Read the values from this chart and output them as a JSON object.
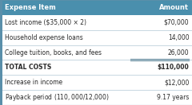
{
  "header": [
    "Expense Item",
    "Amount"
  ],
  "rows": [
    [
      "Lost income ($35,000 × 2)",
      "$70,000"
    ],
    [
      "Household expense loans",
      "14,000"
    ],
    [
      "College tuition, books, and fees",
      "26,000"
    ],
    [
      "TOTAL COSTS",
      "$110,000"
    ],
    [
      "Increase in income",
      "$12,000"
    ],
    [
      "Payback period ($110,000/$12,000)",
      "9.17 years"
    ]
  ],
  "header_bg": "#4a8fad",
  "header_fg": "#ffffff",
  "row_bg": "#f2f2f2",
  "total_row_idx": 3,
  "text_color": "#2a2a2a",
  "divider_color": "#b0c8d4",
  "underline_color": "#6a8fa0",
  "border_color": "#5a8faa",
  "col_split": 0.68
}
